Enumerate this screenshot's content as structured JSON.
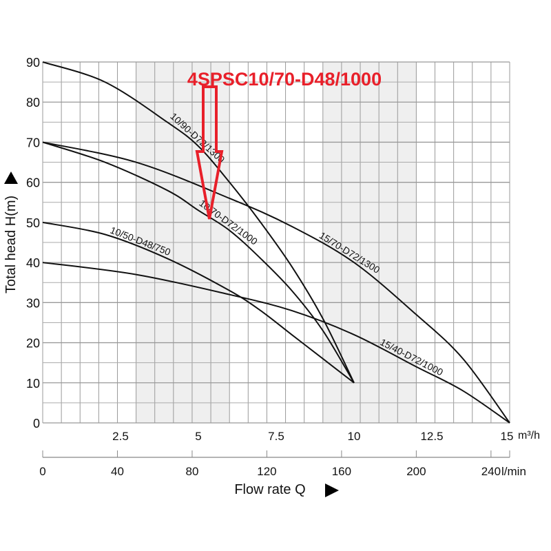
{
  "chart_data": {
    "type": "line",
    "title": "",
    "annotation": "4SPSC10/70-D48/1000",
    "xlabel": "Flow rate Q",
    "ylabel": "Total head H(m)",
    "x_unit": "m³/h",
    "x2_unit": "l/min",
    "xlim": [
      0,
      15
    ],
    "ylim": [
      0,
      90
    ],
    "x_ticks": [
      "2.5",
      "5",
      "7.5",
      "10",
      "12.5",
      "15"
    ],
    "x_tick_values": [
      2.5,
      5,
      7.5,
      10,
      12.5,
      15
    ],
    "x2_ticks": [
      "0",
      "40",
      "80",
      "120",
      "160",
      "200",
      "240"
    ],
    "x2_tick_values": [
      0,
      40,
      80,
      120,
      160,
      200,
      240
    ],
    "y_ticks": [
      "0",
      "10",
      "20",
      "30",
      "40",
      "50",
      "60",
      "70",
      "80",
      "90"
    ],
    "grid": true,
    "series": [
      {
        "name": "10/90-D72/1300",
        "x": [
          0,
          2,
          4,
          5,
          6,
          7,
          8,
          9,
          10
        ],
        "y": [
          90,
          85,
          75,
          69,
          60,
          50,
          39,
          26,
          10
        ]
      },
      {
        "name": "10/70-D72/1000",
        "x": [
          0,
          2,
          4,
          5,
          6,
          7,
          8,
          9,
          10
        ],
        "y": [
          70,
          65,
          58,
          53,
          48,
          41,
          33,
          23,
          10
        ]
      },
      {
        "name": "15/70-D72/1300",
        "x": [
          0,
          3,
          6,
          8,
          10,
          12,
          13.5,
          15
        ],
        "y": [
          70,
          65,
          56,
          49,
          40,
          27,
          16,
          0
        ]
      },
      {
        "name": "10/50-D48/750",
        "x": [
          0,
          2,
          4,
          6,
          7,
          8,
          9,
          10
        ],
        "y": [
          50,
          47,
          41,
          33,
          28,
          22,
          16,
          10
        ]
      },
      {
        "name": "15/40-D72/1000",
        "x": [
          0,
          3,
          6,
          8,
          10,
          12,
          13.5,
          15
        ],
        "y": [
          40,
          37,
          32,
          28,
          22,
          14,
          8,
          0
        ]
      }
    ],
    "label_positions_x": [
      4.9,
      5.9,
      9.8,
      3.1,
      11.8
    ],
    "shaded_bands": [
      [
        3.0,
        6.0
      ],
      [
        9.0,
        12.0
      ]
    ]
  }
}
